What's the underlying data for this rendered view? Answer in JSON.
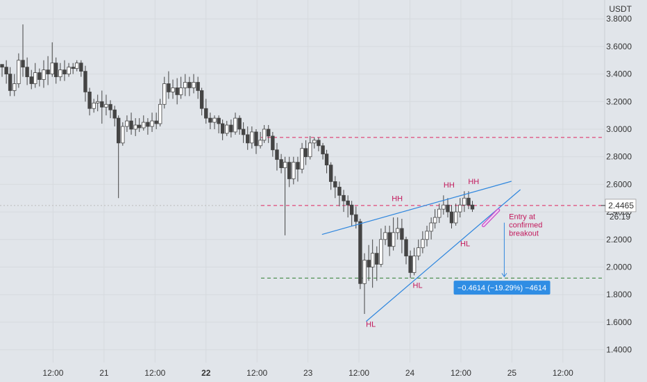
{
  "chart_data": {
    "type": "candlestick",
    "currency": "USDT",
    "ylim": [
      1.3,
      3.85
    ],
    "y_ticks": [
      "3.8000",
      "3.6000",
      "3.4000",
      "3.2000",
      "3.0000",
      "2.8000",
      "2.6000",
      "2.4000",
      "2.2000",
      "2.0000",
      "1.8000",
      "1.6000",
      "1.4000"
    ],
    "x_ticks": [
      {
        "label": "12:00",
        "t": 12,
        "bold": false
      },
      {
        "label": "21",
        "t": 24,
        "bold": false
      },
      {
        "label": "12:00",
        "t": 36,
        "bold": false
      },
      {
        "label": "22",
        "t": 48,
        "bold": true
      },
      {
        "label": "12:00",
        "t": 60,
        "bold": false
      },
      {
        "label": "23",
        "t": 72,
        "bold": false
      },
      {
        "label": "12:00",
        "t": 84,
        "bold": false
      },
      {
        "label": "24",
        "t": 96,
        "bold": false
      },
      {
        "label": "12:00",
        "t": 108,
        "bold": false
      },
      {
        "label": "25",
        "t": 120,
        "bold": false
      },
      {
        "label": "12:00",
        "t": 132,
        "bold": false
      }
    ],
    "x_axis_units": "hours since the '20' day boundary",
    "candles": [
      [
        0.0,
        3.47,
        3.45,
        3.38,
        3.47
      ],
      [
        1.0,
        3.45,
        3.4,
        3.33,
        3.5
      ],
      [
        1.9,
        3.4,
        3.28,
        3.24,
        3.45
      ],
      [
        2.9,
        3.28,
        3.33,
        3.24,
        3.4
      ],
      [
        3.9,
        3.33,
        3.5,
        3.3,
        3.55
      ],
      [
        4.9,
        3.5,
        3.45,
        3.38,
        3.76
      ],
      [
        5.9,
        3.45,
        3.38,
        3.32,
        3.52
      ],
      [
        6.9,
        3.38,
        3.33,
        3.29,
        3.43
      ],
      [
        7.8,
        3.33,
        3.41,
        3.3,
        3.48
      ],
      [
        8.8,
        3.41,
        3.36,
        3.31,
        3.44
      ],
      [
        9.8,
        3.36,
        3.43,
        3.3,
        3.5
      ],
      [
        10.8,
        3.43,
        3.4,
        3.32,
        3.53
      ],
      [
        11.8,
        3.4,
        3.48,
        3.38,
        3.63
      ],
      [
        12.7,
        3.48,
        3.38,
        3.33,
        3.52
      ],
      [
        13.7,
        3.38,
        3.43,
        3.35,
        3.48
      ],
      [
        14.7,
        3.43,
        3.4,
        3.35,
        3.5
      ],
      [
        15.7,
        3.4,
        3.45,
        3.38,
        3.48
      ],
      [
        16.7,
        3.45,
        3.44,
        3.4,
        3.48
      ],
      [
        17.6,
        3.44,
        3.48,
        3.42,
        3.5
      ],
      [
        18.6,
        3.48,
        3.42,
        3.38,
        3.5
      ],
      [
        19.6,
        3.42,
        3.27,
        3.2,
        3.46
      ],
      [
        20.6,
        3.27,
        3.15,
        3.1,
        3.3
      ],
      [
        21.6,
        3.15,
        3.19,
        3.12,
        3.22
      ],
      [
        22.5,
        3.19,
        3.2,
        3.13,
        3.25
      ],
      [
        23.5,
        3.2,
        3.16,
        3.04,
        3.28
      ],
      [
        24.5,
        3.16,
        3.18,
        3.1,
        3.25
      ],
      [
        25.5,
        3.18,
        3.14,
        3.08,
        3.21
      ],
      [
        26.5,
        3.14,
        3.08,
        3.02,
        3.17
      ],
      [
        27.4,
        3.08,
        2.9,
        2.5,
        3.1
      ],
      [
        28.4,
        2.9,
        3.02,
        2.88,
        3.05
      ],
      [
        29.4,
        3.02,
        3.06,
        2.98,
        3.1
      ],
      [
        30.4,
        3.06,
        3.0,
        2.96,
        3.12
      ],
      [
        31.4,
        3.0,
        3.03,
        2.95,
        3.08
      ],
      [
        32.3,
        3.03,
        3.01,
        2.98,
        3.08
      ],
      [
        33.3,
        3.01,
        3.05,
        2.99,
        3.1
      ],
      [
        34.3,
        3.05,
        3.02,
        2.96,
        3.08
      ],
      [
        35.3,
        3.02,
        3.06,
        2.98,
        3.12
      ],
      [
        36.3,
        3.06,
        3.04,
        3.0,
        3.12
      ],
      [
        37.2,
        3.04,
        3.18,
        3.02,
        3.22
      ],
      [
        38.2,
        3.18,
        3.33,
        3.15,
        3.38
      ],
      [
        39.2,
        3.33,
        3.27,
        3.22,
        3.42
      ],
      [
        40.2,
        3.27,
        3.3,
        3.22,
        3.36
      ],
      [
        41.2,
        3.3,
        3.25,
        3.18,
        3.37
      ],
      [
        42.1,
        3.25,
        3.3,
        3.22,
        3.38
      ],
      [
        43.1,
        3.3,
        3.34,
        3.24,
        3.4
      ],
      [
        44.1,
        3.34,
        3.3,
        3.24,
        3.38
      ],
      [
        45.1,
        3.3,
        3.34,
        3.26,
        3.4
      ],
      [
        46.1,
        3.34,
        3.28,
        3.22,
        3.38
      ],
      [
        47.0,
        3.28,
        3.15,
        3.1,
        3.3
      ],
      [
        48.0,
        3.15,
        3.08,
        3.04,
        3.22
      ],
      [
        49.0,
        3.08,
        3.05,
        3.0,
        3.12
      ],
      [
        50.0,
        3.05,
        3.08,
        3.0,
        3.1
      ],
      [
        51.0,
        3.08,
        3.04,
        2.97,
        3.1
      ],
      [
        51.9,
        3.04,
        2.97,
        2.92,
        3.07
      ],
      [
        52.9,
        2.97,
        3.03,
        2.95,
        3.06
      ],
      [
        53.9,
        3.03,
        2.98,
        2.94,
        3.07
      ],
      [
        54.9,
        2.98,
        3.08,
        2.96,
        3.12
      ],
      [
        55.9,
        3.08,
        3.0,
        2.96,
        3.1
      ],
      [
        56.8,
        3.0,
        2.96,
        2.9,
        3.05
      ],
      [
        57.8,
        2.96,
        2.9,
        2.85,
        3.02
      ],
      [
        58.8,
        2.9,
        2.98,
        2.86,
        3.02
      ],
      [
        59.8,
        2.98,
        2.88,
        2.82,
        3.0
      ],
      [
        60.8,
        2.88,
        2.92,
        2.86,
        2.98
      ],
      [
        61.7,
        2.92,
        3.0,
        2.9,
        3.03
      ],
      [
        62.7,
        3.0,
        2.95,
        2.9,
        3.03
      ],
      [
        63.7,
        2.95,
        2.85,
        2.8,
        2.98
      ],
      [
        64.7,
        2.85,
        2.78,
        2.7,
        2.9
      ],
      [
        65.7,
        2.78,
        2.72,
        2.68,
        2.82
      ],
      [
        66.6,
        2.72,
        2.76,
        2.23,
        2.8
      ],
      [
        67.6,
        2.76,
        2.64,
        2.58,
        2.8
      ],
      [
        68.6,
        2.64,
        2.76,
        2.6,
        2.8
      ],
      [
        69.6,
        2.76,
        2.71,
        2.62,
        2.8
      ],
      [
        70.6,
        2.71,
        2.86,
        2.68,
        2.9
      ],
      [
        71.5,
        2.86,
        2.8,
        2.74,
        2.92
      ],
      [
        72.5,
        2.8,
        2.9,
        2.78,
        2.95
      ],
      [
        73.5,
        2.9,
        2.92,
        2.86,
        2.94
      ],
      [
        74.5,
        2.92,
        2.88,
        2.84,
        2.94
      ],
      [
        75.5,
        2.88,
        2.82,
        2.78,
        2.9
      ],
      [
        76.4,
        2.82,
        2.74,
        2.68,
        2.85
      ],
      [
        77.4,
        2.74,
        2.62,
        2.56,
        2.76
      ],
      [
        78.4,
        2.62,
        2.58,
        2.5,
        2.66
      ],
      [
        79.4,
        2.58,
        2.52,
        2.44,
        2.62
      ],
      [
        80.4,
        2.52,
        2.48,
        2.4,
        2.56
      ],
      [
        81.4,
        2.48,
        2.45,
        2.36,
        2.52
      ],
      [
        82.3,
        2.45,
        2.38,
        2.3,
        2.48
      ],
      [
        83.3,
        2.38,
        2.33,
        2.28,
        2.44
      ],
      [
        84.3,
        2.33,
        1.88,
        1.84,
        2.35
      ],
      [
        85.3,
        1.88,
        2.05,
        1.66,
        2.1
      ],
      [
        86.3,
        2.05,
        2.0,
        1.9,
        2.16
      ],
      [
        87.2,
        2.0,
        2.1,
        1.85,
        2.2
      ],
      [
        88.2,
        2.1,
        2.02,
        1.9,
        2.15
      ],
      [
        89.2,
        2.02,
        2.2,
        2.0,
        2.28
      ],
      [
        90.2,
        2.2,
        2.25,
        2.16,
        2.3
      ],
      [
        91.2,
        2.25,
        2.15,
        2.08,
        2.3
      ],
      [
        92.1,
        2.15,
        2.25,
        2.12,
        2.36
      ],
      [
        93.1,
        2.25,
        2.28,
        2.2,
        2.36
      ],
      [
        94.1,
        2.28,
        2.2,
        2.1,
        2.35
      ],
      [
        95.1,
        2.2,
        2.08,
        2.02,
        2.22
      ],
      [
        96.1,
        2.08,
        1.96,
        1.92,
        2.12
      ],
      [
        97.0,
        1.96,
        2.08,
        1.94,
        2.14
      ],
      [
        98.0,
        2.08,
        2.14,
        2.05,
        2.2
      ],
      [
        99.0,
        2.14,
        2.2,
        2.1,
        2.26
      ],
      [
        100.0,
        2.2,
        2.26,
        2.15,
        2.3
      ],
      [
        101.0,
        2.26,
        2.32,
        2.2,
        2.36
      ],
      [
        101.9,
        2.32,
        2.36,
        2.28,
        2.42
      ],
      [
        102.9,
        2.36,
        2.42,
        2.32,
        2.46
      ],
      [
        103.9,
        2.42,
        2.45,
        2.38,
        2.52
      ],
      [
        104.9,
        2.45,
        2.4,
        2.36,
        2.5
      ],
      [
        105.8,
        2.4,
        2.32,
        2.28,
        2.45
      ],
      [
        106.8,
        2.32,
        2.4,
        2.3,
        2.46
      ],
      [
        107.8,
        2.4,
        2.45,
        2.36,
        2.5
      ],
      [
        108.8,
        2.45,
        2.5,
        2.4,
        2.55
      ],
      [
        109.8,
        2.5,
        2.45,
        2.42,
        2.55
      ],
      [
        110.7,
        2.45,
        2.42,
        2.4,
        2.48
      ]
    ],
    "price_label": "2.4465",
    "countdown": "26:19",
    "annotations": {
      "hh": "HH",
      "hl": "HL",
      "entry_lines": [
        "Entry at",
        "confirmed",
        "breakout"
      ],
      "measure_label": "−0.4614 (−19.29%) −4614"
    },
    "levels": {
      "resistance": 2.94,
      "current": 2.4465,
      "target": 1.92
    },
    "colors": {
      "background": "#e1e5ea",
      "candle": "#444444",
      "trendline": "#2e86de",
      "dashed_red": "#e0245e",
      "dashed_green": "#2e7d32",
      "annotation_text": "#c2185b",
      "entry_highlight": "#cc55cc",
      "measure_box": "#2f8de4",
      "price_box": "#ffffff"
    }
  }
}
